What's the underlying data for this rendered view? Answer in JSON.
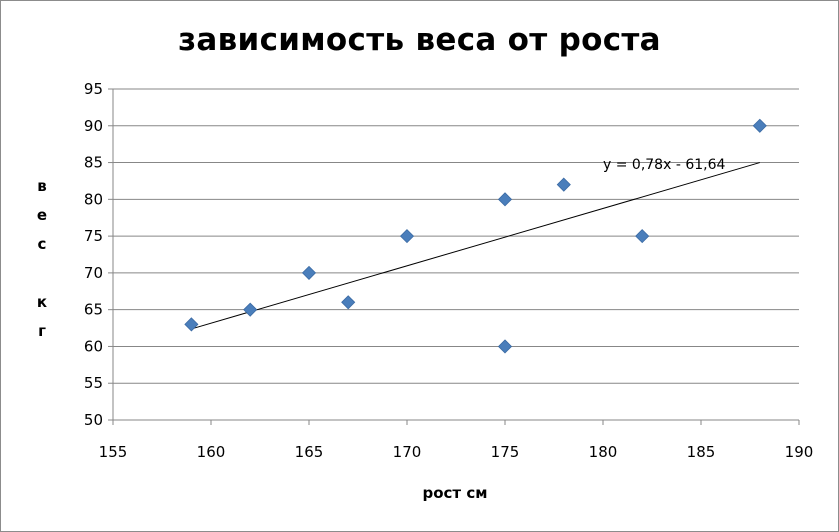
{
  "chart_data": {
    "type": "scatter",
    "title": "зависимость веса от роста",
    "xlabel": "рост см",
    "ylabel": "вес кг",
    "ylabel_lines": [
      "в",
      "е",
      "с",
      "",
      "к",
      "г"
    ],
    "xlim": [
      155,
      190
    ],
    "ylim": [
      50,
      95
    ],
    "xticks": [
      155,
      160,
      165,
      170,
      175,
      180,
      185,
      190
    ],
    "yticks": [
      50,
      55,
      60,
      65,
      70,
      75,
      80,
      85,
      90,
      95
    ],
    "grid": "horizontal",
    "legend": "none",
    "marker": "diamond",
    "marker_color": "#4a7ebb",
    "series": [
      {
        "x": [
          159,
          162,
          165,
          167,
          170,
          175,
          175,
          178,
          182,
          188
        ],
        "y": [
          63,
          65,
          70,
          66,
          75,
          80,
          60,
          82,
          75,
          90
        ]
      }
    ],
    "trendline": {
      "type": "linear",
      "slope": 0.78,
      "intercept": -61.64,
      "x_range": [
        159,
        188
      ],
      "label": "y = 0,78x - 61,64"
    }
  }
}
